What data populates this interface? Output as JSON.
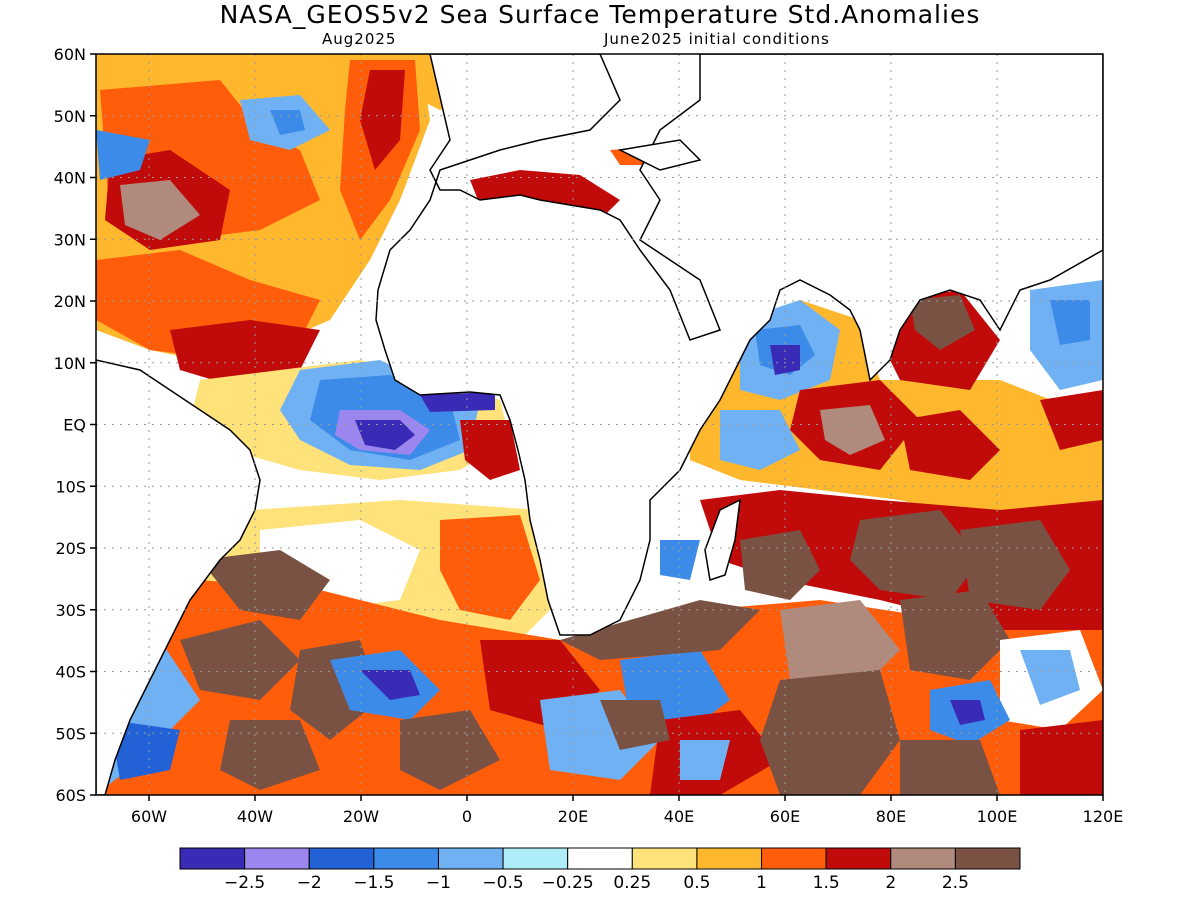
{
  "figure": {
    "title": "NASA_GEOS5v2 Sea Surface Temperature Std.Anomalies",
    "valid": "Aug2025",
    "init": "June2025 initial conditions"
  },
  "axes": {
    "lat_labels": [
      "60N",
      "50N",
      "40N",
      "30N",
      "20N",
      "10N",
      "EQ",
      "10S",
      "20S",
      "30S",
      "40S",
      "50S",
      "60S"
    ],
    "lon_labels": [
      "60W",
      "40W",
      "20W",
      "0",
      "20E",
      "40E",
      "60E",
      "80E",
      "100E",
      "120E"
    ]
  },
  "colorbar": {
    "colors": [
      "#3a2bb6",
      "#9a86ee",
      "#2362d6",
      "#3d8be8",
      "#6fb1f3",
      "#aeeefa",
      "#ffffff",
      "#ffe27a",
      "#ffb72e",
      "#ff5d0a",
      "#c10a0a",
      "#b08a7c",
      "#7a5244"
    ],
    "labels": [
      "−2.5",
      "−2",
      "−1.5",
      "−1",
      "−0.5",
      "−0.25",
      "0.25",
      "0.5",
      "1",
      "1.5",
      "2",
      "2.5"
    ]
  },
  "map_data": {
    "variable": "Sea Surface Temperature standardized anomaly",
    "lon_range": [
      -70,
      120
    ],
    "lat_range": [
      -60,
      60
    ],
    "features": [
      {
        "region": "Subtropical North Atlantic",
        "category": "1.5 to 2"
      },
      {
        "region": "Gulf of Guinea / eastern equatorial Atlantic",
        "category": "-2.5 to -1"
      },
      {
        "region": "Arabian Sea / Somali coast",
        "category": "-1.5 to -0.5"
      },
      {
        "region": "Southern Indian Ocean",
        "category": "> 2.5"
      },
      {
        "region": "South Atlantic 30S-50S",
        "category": "mixed -2 to 2.5"
      }
    ]
  }
}
